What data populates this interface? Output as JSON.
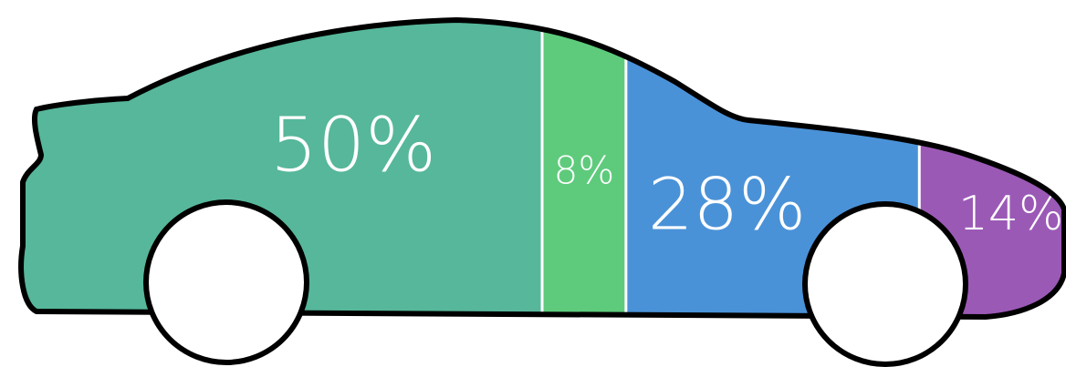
{
  "chart_data": {
    "type": "car-share",
    "values": [
      50,
      8,
      28,
      14
    ],
    "value_labels": [
      "50%",
      "8%",
      "28%",
      "14%"
    ],
    "colors": [
      "#56b79a",
      "#5ecb7c",
      "#4a92d8",
      "#9b59b6"
    ]
  }
}
